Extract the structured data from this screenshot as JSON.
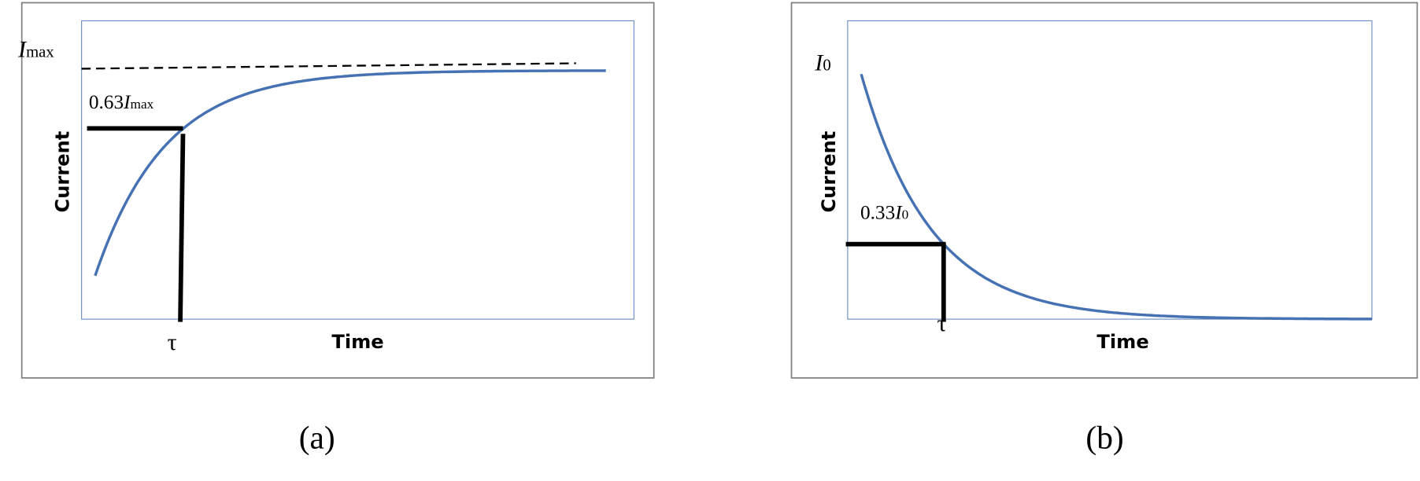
{
  "panels": [
    {
      "label": "(a)",
      "y_axis": "Current",
      "x_axis": "Time",
      "level": {
        "symbol": "I",
        "subscript": "max"
      },
      "marker": {
        "coefficient": "0.63",
        "symbol": "I",
        "subscript": "max"
      },
      "time_constant": "τ"
    },
    {
      "label": "(b)",
      "y_axis": "Current",
      "x_axis": "Time",
      "level": {
        "symbol": "I",
        "subscript": "0"
      },
      "marker": {
        "coefficient": "0.33",
        "symbol": "I",
        "subscript": "0"
      },
      "time_constant": "τ"
    }
  ]
}
